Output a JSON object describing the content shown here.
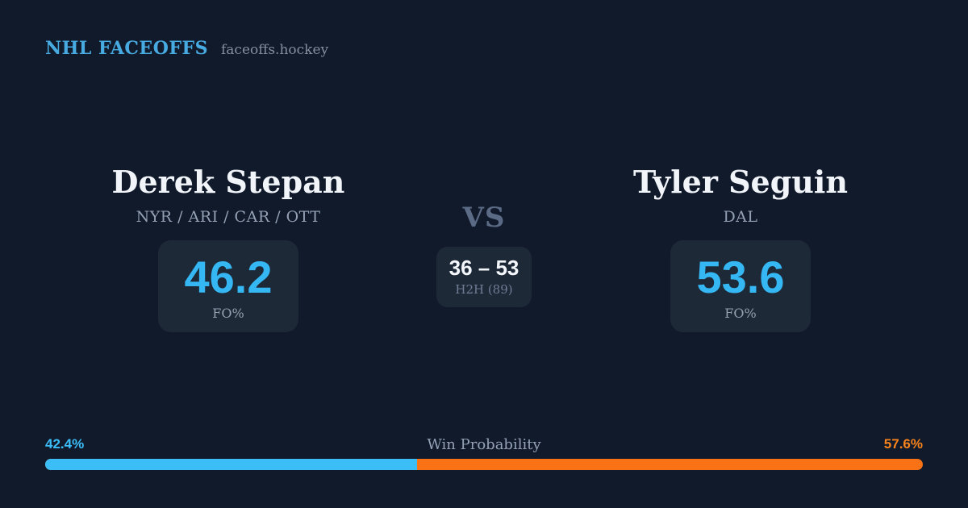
{
  "header": {
    "brand": "NHL FACEOFFS",
    "site": "faceoffs.hockey"
  },
  "matchup": {
    "vs_label": "VS",
    "h2h": {
      "score": "36 – 53",
      "label": "H2H (89)"
    },
    "players": [
      {
        "name": "Derek Stepan",
        "teams": "NYR / ARI / CAR / OTT",
        "stat_value": "46.2",
        "stat_label": "FO%"
      },
      {
        "name": "Tyler Seguin",
        "teams": "DAL",
        "stat_value": "53.6",
        "stat_label": "FO%"
      }
    ]
  },
  "win_probability": {
    "label": "Win Probability",
    "left_pct": "42.4%",
    "right_pct": "57.6%",
    "left_value": 42.4,
    "right_value": 57.6
  },
  "colors": {
    "background": "#111a2b",
    "card_background": "#1e2938",
    "brand_blue": "#47abe2",
    "stat_blue": "#35b7f3",
    "bar_blue": "#3bbdf8",
    "bar_orange": "#f97316",
    "orange_label": "#f9831c",
    "text_primary": "#f1f4f9",
    "text_muted": "#94a1b5"
  }
}
